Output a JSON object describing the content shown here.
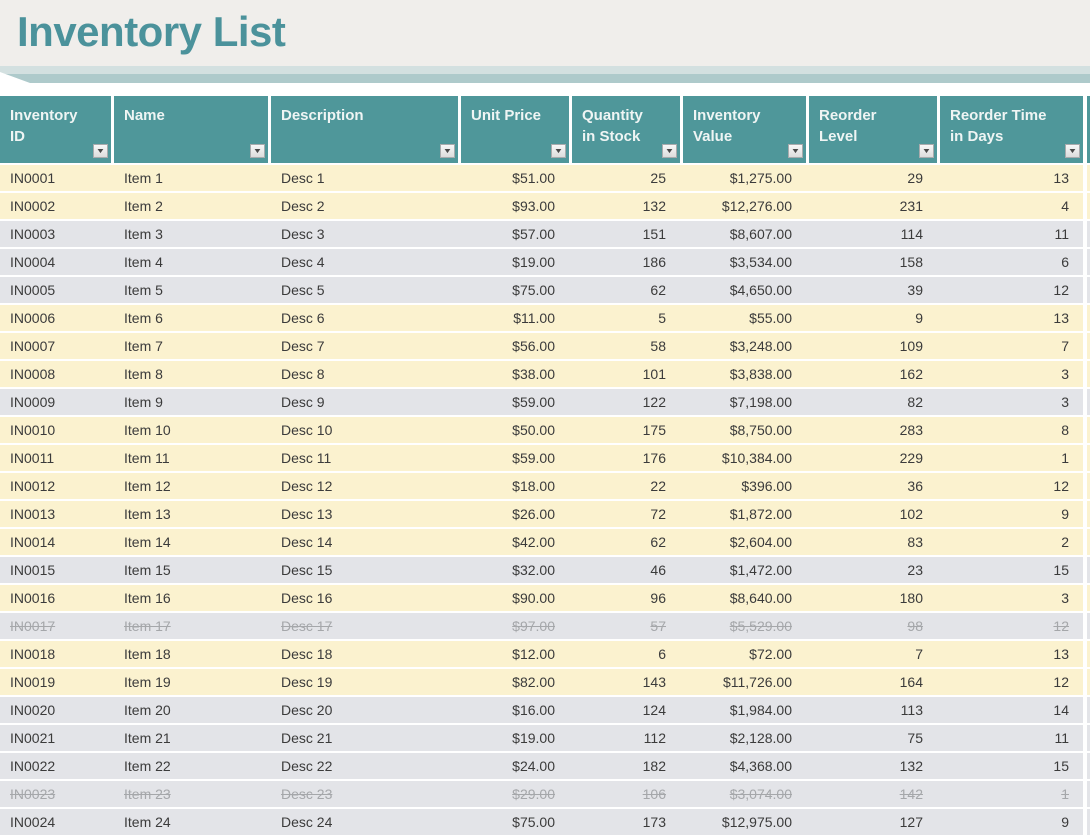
{
  "title": "Inventory List",
  "icons": {
    "filter_dropdown": "▼"
  },
  "colors": {
    "title_text": "#4B929B",
    "page_top_bg": "#F0EEEB",
    "band_light": "#D3E0E0",
    "band_medium": "#AECACB",
    "header_bg": "#4F979A",
    "header_text": "#EFF5F4",
    "row_highlight_bg": "#FBF2CF",
    "row_normal_bg": "#E3E4E8",
    "row_text": "#3B3B3B",
    "discontinued_text": "#A5A7AA"
  },
  "columns": [
    {
      "key": "id",
      "label": "Inventory\nID",
      "align": "left"
    },
    {
      "key": "name",
      "label": "Name",
      "align": "left"
    },
    {
      "key": "description",
      "label": "Description",
      "align": "left"
    },
    {
      "key": "unit_price",
      "label": "Unit Price",
      "align": "right"
    },
    {
      "key": "qty",
      "label": "Quantity\nin Stock",
      "align": "right"
    },
    {
      "key": "value",
      "label": "Inventory\nValue",
      "align": "right"
    },
    {
      "key": "reorder_level",
      "label": "Reorder\nLevel",
      "align": "right"
    },
    {
      "key": "reorder_days",
      "label": "Reorder Time\nin Days",
      "align": "right"
    }
  ],
  "rows": [
    {
      "id": "IN0001",
      "name": "Item 1",
      "description": "Desc 1",
      "unit_price": "$51.00",
      "qty": "25",
      "value": "$1,275.00",
      "reorder_level": "29",
      "reorder_days": "13",
      "highlight": true,
      "discontinued": false
    },
    {
      "id": "IN0002",
      "name": "Item 2",
      "description": "Desc 2",
      "unit_price": "$93.00",
      "qty": "132",
      "value": "$12,276.00",
      "reorder_level": "231",
      "reorder_days": "4",
      "highlight": true,
      "discontinued": false
    },
    {
      "id": "IN0003",
      "name": "Item 3",
      "description": "Desc 3",
      "unit_price": "$57.00",
      "qty": "151",
      "value": "$8,607.00",
      "reorder_level": "114",
      "reorder_days": "11",
      "highlight": false,
      "discontinued": false
    },
    {
      "id": "IN0004",
      "name": "Item 4",
      "description": "Desc 4",
      "unit_price": "$19.00",
      "qty": "186",
      "value": "$3,534.00",
      "reorder_level": "158",
      "reorder_days": "6",
      "highlight": false,
      "discontinued": false
    },
    {
      "id": "IN0005",
      "name": "Item 5",
      "description": "Desc 5",
      "unit_price": "$75.00",
      "qty": "62",
      "value": "$4,650.00",
      "reorder_level": "39",
      "reorder_days": "12",
      "highlight": false,
      "discontinued": false
    },
    {
      "id": "IN0006",
      "name": "Item 6",
      "description": "Desc 6",
      "unit_price": "$11.00",
      "qty": "5",
      "value": "$55.00",
      "reorder_level": "9",
      "reorder_days": "13",
      "highlight": true,
      "discontinued": false
    },
    {
      "id": "IN0007",
      "name": "Item 7",
      "description": "Desc 7",
      "unit_price": "$56.00",
      "qty": "58",
      "value": "$3,248.00",
      "reorder_level": "109",
      "reorder_days": "7",
      "highlight": true,
      "discontinued": false
    },
    {
      "id": "IN0008",
      "name": "Item 8",
      "description": "Desc 8",
      "unit_price": "$38.00",
      "qty": "101",
      "value": "$3,838.00",
      "reorder_level": "162",
      "reorder_days": "3",
      "highlight": true,
      "discontinued": false
    },
    {
      "id": "IN0009",
      "name": "Item 9",
      "description": "Desc 9",
      "unit_price": "$59.00",
      "qty": "122",
      "value": "$7,198.00",
      "reorder_level": "82",
      "reorder_days": "3",
      "highlight": false,
      "discontinued": false
    },
    {
      "id": "IN0010",
      "name": "Item 10",
      "description": "Desc 10",
      "unit_price": "$50.00",
      "qty": "175",
      "value": "$8,750.00",
      "reorder_level": "283",
      "reorder_days": "8",
      "highlight": true,
      "discontinued": false
    },
    {
      "id": "IN0011",
      "name": "Item 11",
      "description": "Desc 11",
      "unit_price": "$59.00",
      "qty": "176",
      "value": "$10,384.00",
      "reorder_level": "229",
      "reorder_days": "1",
      "highlight": true,
      "discontinued": false
    },
    {
      "id": "IN0012",
      "name": "Item 12",
      "description": "Desc 12",
      "unit_price": "$18.00",
      "qty": "22",
      "value": "$396.00",
      "reorder_level": "36",
      "reorder_days": "12",
      "highlight": true,
      "discontinued": false
    },
    {
      "id": "IN0013",
      "name": "Item 13",
      "description": "Desc 13",
      "unit_price": "$26.00",
      "qty": "72",
      "value": "$1,872.00",
      "reorder_level": "102",
      "reorder_days": "9",
      "highlight": true,
      "discontinued": false
    },
    {
      "id": "IN0014",
      "name": "Item 14",
      "description": "Desc 14",
      "unit_price": "$42.00",
      "qty": "62",
      "value": "$2,604.00",
      "reorder_level": "83",
      "reorder_days": "2",
      "highlight": true,
      "discontinued": false
    },
    {
      "id": "IN0015",
      "name": "Item 15",
      "description": "Desc 15",
      "unit_price": "$32.00",
      "qty": "46",
      "value": "$1,472.00",
      "reorder_level": "23",
      "reorder_days": "15",
      "highlight": false,
      "discontinued": false
    },
    {
      "id": "IN0016",
      "name": "Item 16",
      "description": "Desc 16",
      "unit_price": "$90.00",
      "qty": "96",
      "value": "$8,640.00",
      "reorder_level": "180",
      "reorder_days": "3",
      "highlight": true,
      "discontinued": false
    },
    {
      "id": "IN0017",
      "name": "Item 17",
      "description": "Desc 17",
      "unit_price": "$97.00",
      "qty": "57",
      "value": "$5,529.00",
      "reorder_level": "98",
      "reorder_days": "12",
      "highlight": false,
      "discontinued": true
    },
    {
      "id": "IN0018",
      "name": "Item 18",
      "description": "Desc 18",
      "unit_price": "$12.00",
      "qty": "6",
      "value": "$72.00",
      "reorder_level": "7",
      "reorder_days": "13",
      "highlight": true,
      "discontinued": false
    },
    {
      "id": "IN0019",
      "name": "Item 19",
      "description": "Desc 19",
      "unit_price": "$82.00",
      "qty": "143",
      "value": "$11,726.00",
      "reorder_level": "164",
      "reorder_days": "12",
      "highlight": true,
      "discontinued": false
    },
    {
      "id": "IN0020",
      "name": "Item 20",
      "description": "Desc 20",
      "unit_price": "$16.00",
      "qty": "124",
      "value": "$1,984.00",
      "reorder_level": "113",
      "reorder_days": "14",
      "highlight": false,
      "discontinued": false
    },
    {
      "id": "IN0021",
      "name": "Item 21",
      "description": "Desc 21",
      "unit_price": "$19.00",
      "qty": "112",
      "value": "$2,128.00",
      "reorder_level": "75",
      "reorder_days": "11",
      "highlight": false,
      "discontinued": false
    },
    {
      "id": "IN0022",
      "name": "Item 22",
      "description": "Desc 22",
      "unit_price": "$24.00",
      "qty": "182",
      "value": "$4,368.00",
      "reorder_level": "132",
      "reorder_days": "15",
      "highlight": false,
      "discontinued": false
    },
    {
      "id": "IN0023",
      "name": "Item 23",
      "description": "Desc 23",
      "unit_price": "$29.00",
      "qty": "106",
      "value": "$3,074.00",
      "reorder_level": "142",
      "reorder_days": "1",
      "highlight": false,
      "discontinued": true
    },
    {
      "id": "IN0024",
      "name": "Item 24",
      "description": "Desc 24",
      "unit_price": "$75.00",
      "qty": "173",
      "value": "$12,975.00",
      "reorder_level": "127",
      "reorder_days": "9",
      "highlight": false,
      "discontinued": false
    }
  ]
}
